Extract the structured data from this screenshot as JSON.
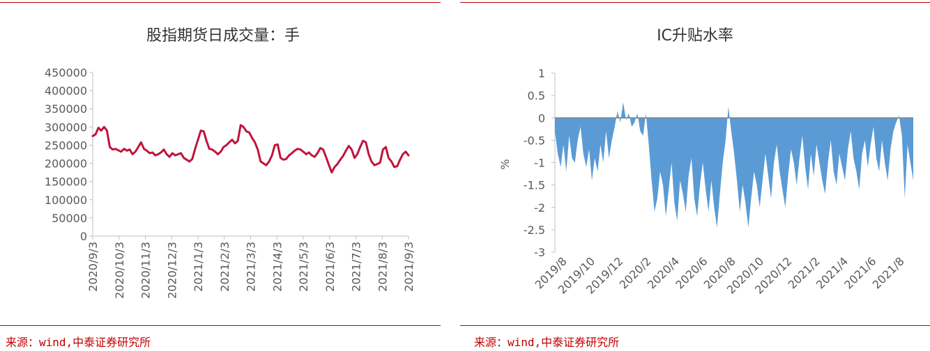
{
  "chart_data": [
    {
      "type": "line",
      "title": "股指期货日成交量：手",
      "ylabel": "",
      "xlabel": "",
      "ylim": [
        0,
        450000
      ],
      "yticks": [
        0,
        50000,
        100000,
        150000,
        200000,
        250000,
        300000,
        350000,
        400000,
        450000
      ],
      "xticks": [
        "2020/9/3",
        "2020/10/3",
        "2020/11/3",
        "2020/12/3",
        "2021/1/3",
        "2021/2/3",
        "2021/3/3",
        "2021/4/3",
        "2021/5/3",
        "2021/6/3",
        "2021/7/3",
        "2021/8/3",
        "2021/9/3"
      ],
      "line_color": "#c0143c",
      "series": [
        {
          "values": [
            275000,
            280000,
            298000,
            290000,
            300000,
            290000,
            245000,
            238000,
            240000,
            236000,
            232000,
            240000,
            235000,
            238000,
            225000,
            232000,
            245000,
            258000,
            240000,
            235000,
            228000,
            230000,
            222000,
            225000,
            230000,
            238000,
            225000,
            218000,
            228000,
            222000,
            225000,
            228000,
            215000,
            210000,
            205000,
            212000,
            240000,
            265000,
            290000,
            288000,
            262000,
            240000,
            238000,
            232000,
            225000,
            232000,
            245000,
            250000,
            258000,
            265000,
            255000,
            262000,
            305000,
            300000,
            288000,
            285000,
            270000,
            258000,
            238000,
            205000,
            200000,
            195000,
            205000,
            222000,
            250000,
            252000,
            215000,
            210000,
            212000,
            222000,
            228000,
            235000,
            240000,
            238000,
            232000,
            225000,
            230000,
            222000,
            218000,
            228000,
            242000,
            238000,
            218000,
            196000,
            175000,
            190000,
            198000,
            210000,
            220000,
            235000,
            248000,
            238000,
            215000,
            225000,
            245000,
            262000,
            258000,
            225000,
            205000,
            195000,
            198000,
            202000,
            238000,
            245000,
            215000,
            205000,
            190000,
            192000,
            210000,
            225000,
            232000,
            222000
          ]
        }
      ]
    },
    {
      "type": "area",
      "title": "IC升贴水率",
      "ylabel": "%",
      "xlabel": "",
      "ylim": [
        -3,
        1
      ],
      "yticks": [
        1,
        0.5,
        0,
        -0.5,
        -1,
        -1.5,
        -2,
        -2.5,
        -3
      ],
      "xticks": [
        "2019/8",
        "2019/10",
        "2019/12",
        "2020/2",
        "2020/4",
        "2020/6",
        "2020/8",
        "2020/10",
        "2020/12",
        "2021/2",
        "2021/4",
        "2021/6",
        "2021/8"
      ],
      "fill_color": "#5b9bd5",
      "series": [
        {
          "values": [
            -0.3,
            -0.8,
            -1.1,
            -0.6,
            -1.2,
            -0.4,
            -0.9,
            -1.0,
            -0.5,
            -0.2,
            -0.8,
            -1.1,
            -0.7,
            -1.4,
            -0.9,
            -1.2,
            -0.6,
            -1.0,
            -0.3,
            -0.9,
            -0.5,
            -0.2,
            0.15,
            -0.1,
            0.35,
            -0.05,
            0.1,
            -0.2,
            -0.1,
            0.1,
            -0.3,
            -0.4,
            0.1,
            -0.6,
            -1.4,
            -2.1,
            -1.8,
            -1.2,
            -1.5,
            -2.2,
            -1.6,
            -1.0,
            -1.9,
            -2.3,
            -1.4,
            -1.7,
            -2.1,
            -1.3,
            -0.9,
            -1.8,
            -2.2,
            -1.5,
            -1.0,
            -1.6,
            -2.1,
            -1.4,
            -2.0,
            -2.45,
            -1.7,
            -1.0,
            -0.5,
            0.25,
            -0.3,
            -0.8,
            -1.4,
            -2.1,
            -1.5,
            -1.9,
            -2.45,
            -1.8,
            -1.2,
            -1.5,
            -2.0,
            -1.4,
            -0.8,
            -1.3,
            -1.8,
            -1.0,
            -0.6,
            -1.2,
            -1.6,
            -2.0,
            -1.3,
            -0.7,
            -1.0,
            -1.5,
            -0.9,
            -0.4,
            -1.1,
            -1.6,
            -0.8,
            -1.3,
            -0.6,
            -1.0,
            -1.4,
            -1.7,
            -1.0,
            -0.5,
            -1.2,
            -1.5,
            -0.8,
            -1.1,
            -1.4,
            -0.7,
            -0.3,
            -0.9,
            -1.2,
            -1.6,
            -0.8,
            -0.5,
            -1.1,
            -0.6,
            -0.2,
            -0.9,
            -1.2,
            -0.5,
            -1.0,
            -1.4,
            -0.7,
            -0.3,
            -0.1,
            0.05,
            -0.4,
            -1.8,
            -0.6,
            -1.0,
            -1.4
          ]
        }
      ]
    }
  ],
  "sources": {
    "left": "来源：wind,中泰证券研究所",
    "right": "来源：wind,中泰证券研究所"
  }
}
